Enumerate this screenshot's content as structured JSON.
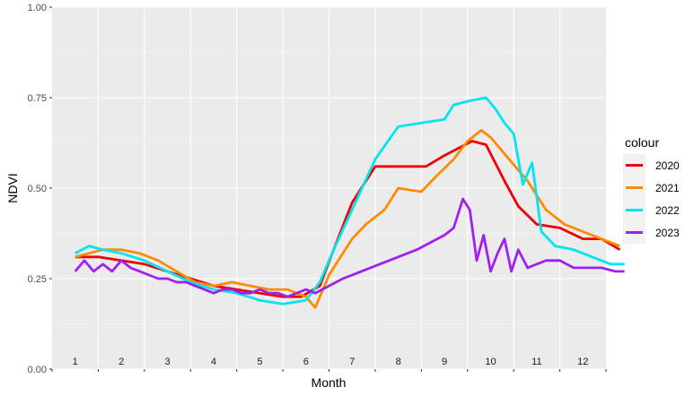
{
  "chart_data": {
    "type": "line",
    "xlabel": "Month",
    "ylabel": "NDVI",
    "ylim": [
      0,
      1
    ],
    "y_ticks": [
      "0.00",
      "0.25",
      "0.50",
      "0.75",
      "1.00"
    ],
    "x_categories": [
      "1",
      "2",
      "3",
      "4",
      "5",
      "6",
      "7",
      "8",
      "9",
      "10",
      "11",
      "12"
    ],
    "grid": true,
    "legend": {
      "title": "colour",
      "position": "right"
    },
    "series": [
      {
        "name": "2020",
        "color": "#ee0000",
        "x": [
          1.0,
          1.5,
          2.0,
          2.5,
          3.0,
          3.5,
          4.0,
          4.5,
          5.0,
          5.5,
          5.9,
          6.3,
          6.6,
          7.0,
          7.5,
          8.0,
          8.6,
          9.0,
          9.6,
          9.9,
          10.3,
          10.6,
          11.0,
          11.5,
          12.0,
          12.4,
          12.8
        ],
        "y": [
          0.31,
          0.31,
          0.3,
          0.29,
          0.27,
          0.25,
          0.23,
          0.22,
          0.21,
          0.2,
          0.2,
          0.23,
          0.33,
          0.46,
          0.56,
          0.56,
          0.56,
          0.59,
          0.63,
          0.62,
          0.52,
          0.45,
          0.4,
          0.39,
          0.36,
          0.36,
          0.33
        ]
      },
      {
        "name": "2021",
        "color": "#ff8c00",
        "x": [
          1.0,
          1.3,
          1.6,
          2.0,
          2.4,
          2.8,
          3.2,
          3.6,
          4.0,
          4.4,
          4.8,
          5.2,
          5.6,
          6.0,
          6.2,
          6.5,
          6.7,
          7.0,
          7.3,
          7.7,
          8.0,
          8.5,
          8.8,
          9.2,
          9.5,
          9.8,
          10.0,
          10.4,
          10.8,
          11.2,
          11.6,
          12.0,
          12.4,
          12.8
        ],
        "y": [
          0.31,
          0.32,
          0.33,
          0.33,
          0.32,
          0.3,
          0.27,
          0.24,
          0.23,
          0.24,
          0.23,
          0.22,
          0.22,
          0.2,
          0.17,
          0.26,
          0.3,
          0.36,
          0.4,
          0.44,
          0.5,
          0.49,
          0.53,
          0.58,
          0.63,
          0.66,
          0.64,
          0.58,
          0.52,
          0.44,
          0.4,
          0.38,
          0.36,
          0.34
        ]
      },
      {
        "name": "2022",
        "color": "#00e5ee",
        "x": [
          1.0,
          1.3,
          1.6,
          2.0,
          2.5,
          3.0,
          3.5,
          4.0,
          4.5,
          5.0,
          5.5,
          6.0,
          6.3,
          6.6,
          7.0,
          7.5,
          8.0,
          8.5,
          9.0,
          9.2,
          9.5,
          9.9,
          10.1,
          10.3,
          10.5,
          10.7,
          10.9,
          11.1,
          11.4,
          11.8,
          12.2,
          12.6,
          12.9
        ],
        "y": [
          0.32,
          0.34,
          0.33,
          0.32,
          0.3,
          0.27,
          0.24,
          0.22,
          0.21,
          0.19,
          0.18,
          0.19,
          0.24,
          0.33,
          0.44,
          0.58,
          0.67,
          0.68,
          0.69,
          0.73,
          0.74,
          0.75,
          0.72,
          0.68,
          0.65,
          0.51,
          0.57,
          0.38,
          0.34,
          0.33,
          0.31,
          0.29,
          0.29
        ]
      },
      {
        "name": "2023",
        "color": "#a020f0",
        "x": [
          1.0,
          1.2,
          1.4,
          1.6,
          1.8,
          2.0,
          2.2,
          2.4,
          2.6,
          2.8,
          3.0,
          3.2,
          3.4,
          3.6,
          3.8,
          4.0,
          4.2,
          4.4,
          4.6,
          4.8,
          5.0,
          5.2,
          5.4,
          5.6,
          5.8,
          6.0,
          6.2,
          6.5,
          6.8,
          7.2,
          7.6,
          8.0,
          8.4,
          8.7,
          9.0,
          9.2,
          9.4,
          9.55,
          9.7,
          9.85,
          10.0,
          10.15,
          10.3,
          10.45,
          10.6,
          10.8,
          11.0,
          11.2,
          11.5,
          11.8,
          12.1,
          12.4,
          12.7,
          12.9
        ],
        "y": [
          0.27,
          0.3,
          0.27,
          0.29,
          0.27,
          0.3,
          0.28,
          0.27,
          0.26,
          0.25,
          0.25,
          0.24,
          0.24,
          0.23,
          0.22,
          0.21,
          0.22,
          0.22,
          0.21,
          0.21,
          0.22,
          0.21,
          0.21,
          0.2,
          0.21,
          0.22,
          0.21,
          0.23,
          0.25,
          0.27,
          0.29,
          0.31,
          0.33,
          0.35,
          0.37,
          0.39,
          0.47,
          0.44,
          0.3,
          0.37,
          0.27,
          0.32,
          0.36,
          0.27,
          0.33,
          0.28,
          0.29,
          0.3,
          0.3,
          0.28,
          0.28,
          0.28,
          0.27,
          0.27
        ]
      }
    ]
  }
}
